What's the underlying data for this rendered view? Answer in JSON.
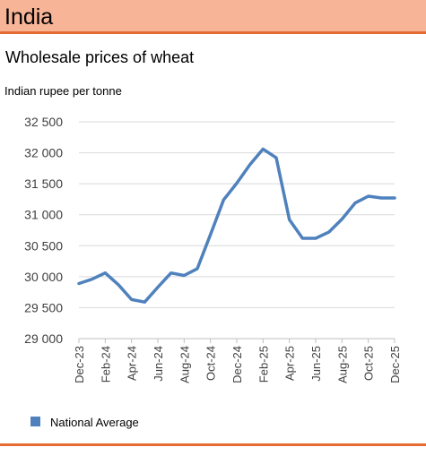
{
  "header": {
    "title": "India"
  },
  "subtitle": "Wholesale prices of wheat",
  "units": "Indian rupee per tonne",
  "colors": {
    "header_bg": "#f8b497",
    "header_rule": "#e46c32",
    "series": "#4f81bd",
    "grid": "#d9d9d9"
  },
  "chart_data": {
    "type": "line",
    "title": "Wholesale prices of wheat",
    "ylabel": "Indian rupee per tonne",
    "xlabel": "",
    "ylim": [
      29000,
      32500
    ],
    "y_ticks": [
      29000,
      29500,
      30000,
      30500,
      31000,
      31500,
      32000,
      32500
    ],
    "y_tick_labels": [
      "29 000",
      "29 500",
      "30 000",
      "30 500",
      "31 000",
      "31 500",
      "32 000",
      "32 500"
    ],
    "x_tick_labels": [
      "Dec-23",
      "Feb-24",
      "Apr-24",
      "Jun-24",
      "Aug-24",
      "Oct-24",
      "Dec-24",
      "Feb-25",
      "Apr-25",
      "Jun-25",
      "Aug-25",
      "Oct-25",
      "Dec-25"
    ],
    "x": [
      "Dec-23",
      "Jan-24",
      "Feb-24",
      "Mar-24",
      "Apr-24",
      "May-24",
      "Jun-24",
      "Jul-24",
      "Aug-24",
      "Sep-24",
      "Oct-24",
      "Nov-24",
      "Dec-24",
      "Jan-25",
      "Feb-25",
      "Mar-25",
      "Apr-25",
      "May-25",
      "Jun-25",
      "Jul-25",
      "Aug-25",
      "Sep-25",
      "Oct-25",
      "Nov-25",
      "Dec-25"
    ],
    "grid": true,
    "legend_position": "bottom-left",
    "series": [
      {
        "name": "National Average",
        "values": [
          29890,
          29960,
          30060,
          29870,
          29630,
          29590,
          29830,
          30060,
          30020,
          30130,
          30680,
          31240,
          31510,
          31810,
          32060,
          31920,
          30920,
          30620,
          30620,
          30720,
          30930,
          31190,
          31300,
          31270,
          31270
        ]
      }
    ]
  }
}
